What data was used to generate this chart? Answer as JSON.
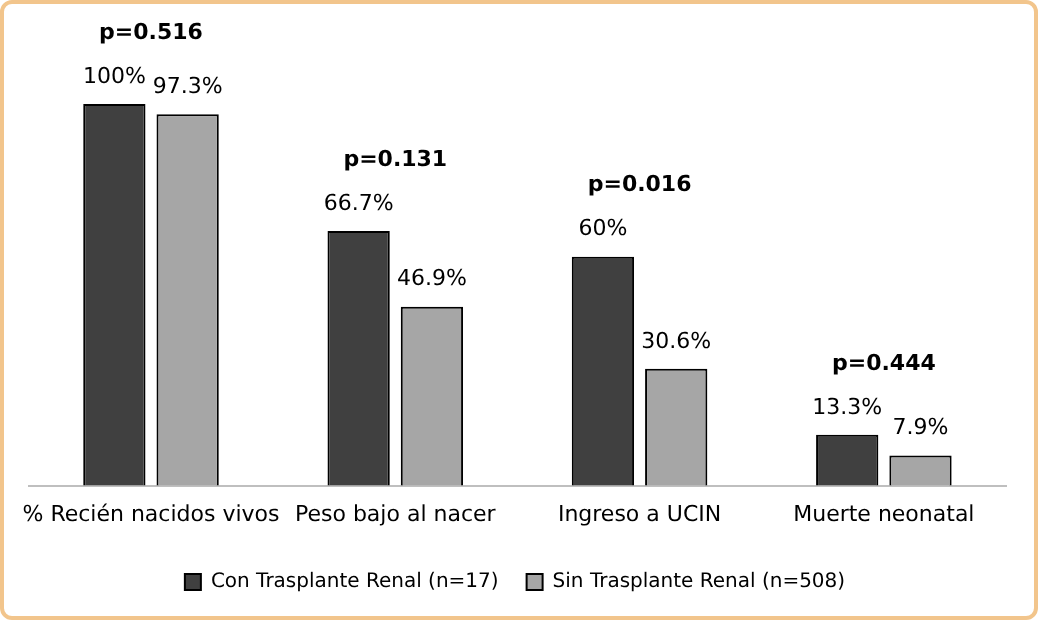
{
  "chart_data": {
    "type": "bar",
    "categories": [
      "% Recién nacidos vivos",
      "Peso bajo al nacer",
      "Ingreso a UCIN",
      "Muerte neonatal"
    ],
    "series": [
      {
        "name": "Con Trasplante Renal (n=17)",
        "color": "#404040",
        "values": [
          100,
          66.7,
          60,
          13.3
        ],
        "value_labels": [
          "100%",
          "66.7%",
          "60%",
          "13.3%"
        ]
      },
      {
        "name": "Sin Trasplante Renal (n=508)",
        "color": "#a6a6a6",
        "values": [
          97.3,
          46.9,
          30.6,
          7.9
        ],
        "value_labels": [
          "97.3%",
          "46.9%",
          "30.6%",
          "7.9%"
        ]
      }
    ],
    "annotations": [
      "p=0.516",
      "p=0.131",
      "p=0.016",
      "p=0.444"
    ],
    "grid": false,
    "legend": "bottom"
  }
}
